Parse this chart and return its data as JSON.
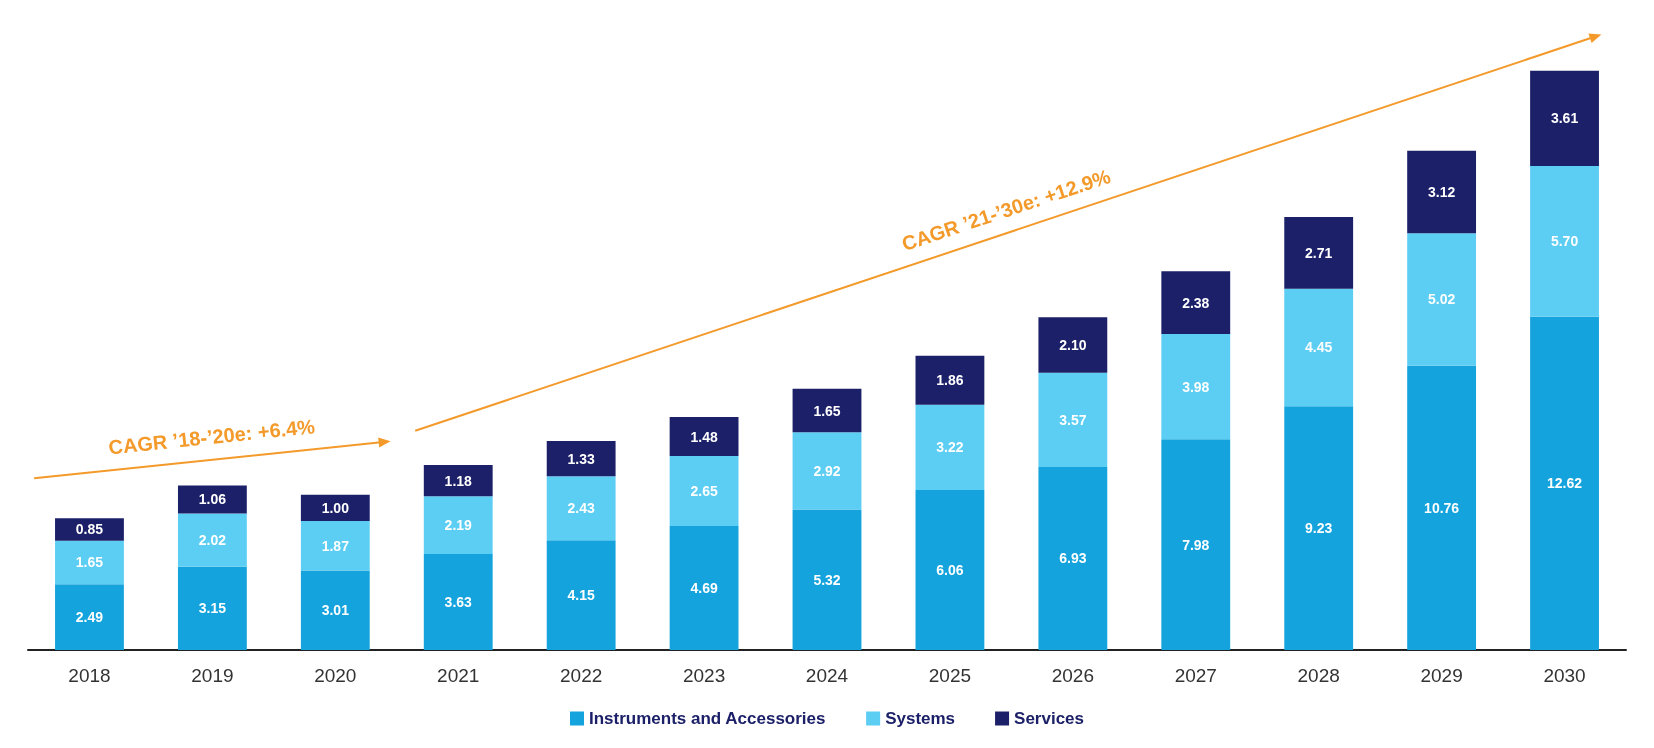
{
  "chart_data": {
    "type": "bar",
    "stacked": true,
    "legend": "bottom",
    "categories": [
      "2018",
      "2019",
      "2020",
      "2021",
      "2022",
      "2023",
      "2024",
      "2025",
      "2026",
      "2027",
      "2028",
      "2029",
      "2030"
    ],
    "series": [
      {
        "name": "Instruments and Accessories",
        "color": "#14a3dc",
        "values": [
          2.49,
          3.15,
          3.01,
          3.63,
          4.15,
          4.69,
          5.32,
          6.06,
          6.93,
          7.98,
          9.23,
          10.76,
          12.62
        ],
        "value_labels": [
          "2.49",
          "3.15",
          "3.01",
          "3.63",
          "4.15",
          "4.69",
          "5.32",
          "6.06",
          "6.93",
          "7.98",
          "9.23",
          "10.76",
          "12.62"
        ]
      },
      {
        "name": "Systems",
        "color": "#5ccdf3",
        "values": [
          1.65,
          2.02,
          1.87,
          2.19,
          2.43,
          2.65,
          2.92,
          3.22,
          3.57,
          3.98,
          4.45,
          5.02,
          5.7
        ],
        "value_labels": [
          "1.65",
          "2.02",
          "1.87",
          "2.19",
          "2.43",
          "2.65",
          "2.92",
          "3.22",
          "3.57",
          "3.98",
          "4.45",
          "5.02",
          "5.70"
        ]
      },
      {
        "name": "Services",
        "color": "#1c2068",
        "values": [
          0.85,
          1.06,
          1.0,
          1.18,
          1.33,
          1.48,
          1.65,
          1.86,
          2.1,
          2.38,
          2.71,
          3.12,
          3.61
        ],
        "value_labels": [
          "0.85",
          "1.06",
          "1.00",
          "1.18",
          "1.33",
          "1.48",
          "1.65",
          "1.86",
          "2.10",
          "2.38",
          "2.71",
          "3.12",
          "3.61"
        ]
      }
    ],
    "annotations": [
      "CAGR ’18-’20e: +6.4%",
      "CAGR ’21-’30e: +12.9%"
    ]
  }
}
